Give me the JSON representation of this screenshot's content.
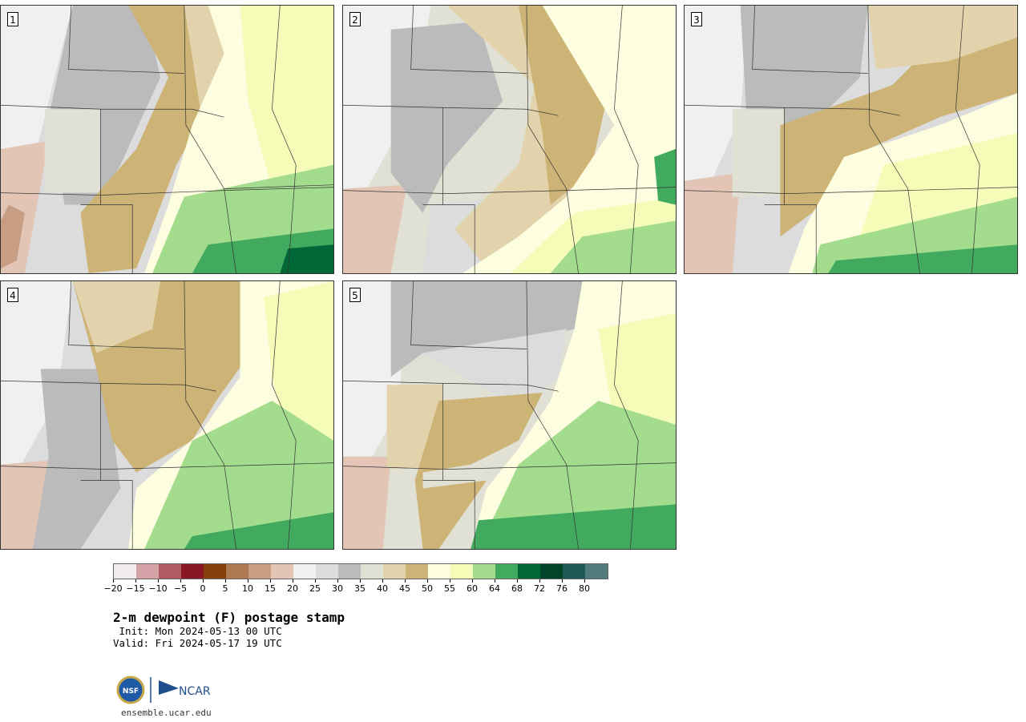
{
  "panels": [
    {
      "number": "1"
    },
    {
      "number": "2"
    },
    {
      "number": "3"
    },
    {
      "number": "4"
    },
    {
      "number": "5"
    }
  ],
  "colorbar": {
    "colors": [
      "#f3ecec",
      "#d3a1a6",
      "#ae5b63",
      "#8a1724",
      "#86400e",
      "#ae7952",
      "#c79d84",
      "#e2c5b5",
      "#f0f0f0",
      "#dcdcdc",
      "#bbbbbb",
      "#e0e0d4",
      "#e3d3ad",
      "#cdb375",
      "#fdfde0",
      "#f5fcb8",
      "#a4dc8e",
      "#42aa5f",
      "#006837",
      "#00452a",
      "#1f5656",
      "#507a7c"
    ],
    "labels": [
      "−20",
      "−15",
      "−10",
      "−5",
      "0",
      "5",
      "10",
      "15",
      "20",
      "25",
      "30",
      "35",
      "40",
      "45",
      "50",
      "55",
      "60",
      "64",
      "68",
      "72",
      "76",
      "80"
    ]
  },
  "title": "2-m dewpoint (F) postage stamp",
  "init": " Init: Mon 2024-05-13 00 UTC",
  "valid": "Valid: Fri 2024-05-17 19 UTC",
  "logo": {
    "left_badge": "NSF",
    "right_text": "NCAR"
  },
  "site": "ensemble.ucar.edu"
}
